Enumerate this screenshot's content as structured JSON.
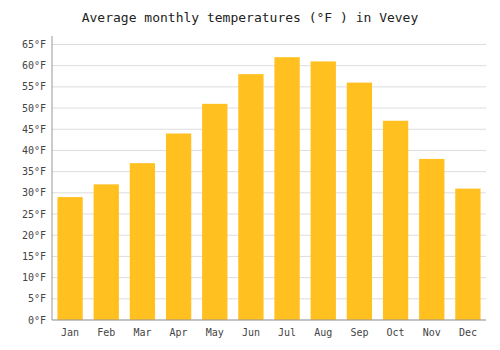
{
  "chart_data": {
    "type": "bar",
    "title": "Average monthly temperatures (°F ) in Vevey",
    "categories": [
      "Jan",
      "Feb",
      "Mar",
      "Apr",
      "May",
      "Jun",
      "Jul",
      "Aug",
      "Sep",
      "Oct",
      "Nov",
      "Dec"
    ],
    "values": [
      29,
      32,
      37,
      44,
      51,
      58,
      62,
      61,
      56,
      47,
      38,
      31
    ],
    "color": "#FFC020",
    "ylim": [
      0,
      67
    ],
    "yticks": [
      {
        "value": 0,
        "label": "0°F"
      },
      {
        "value": 5,
        "label": "5°F"
      },
      {
        "value": 10,
        "label": "10°F"
      },
      {
        "value": 15,
        "label": "15°F"
      },
      {
        "value": 20,
        "label": "20°F"
      },
      {
        "value": 25,
        "label": "25°F"
      },
      {
        "value": 30,
        "label": "30°F"
      },
      {
        "value": 35,
        "label": "35°F"
      },
      {
        "value": 40,
        "label": "40°F"
      },
      {
        "value": 45,
        "label": "45°F"
      },
      {
        "value": 50,
        "label": "50°F"
      },
      {
        "value": 55,
        "label": "55°F"
      },
      {
        "value": 60,
        "label": "60°F"
      },
      {
        "value": 65,
        "label": "65°F"
      }
    ],
    "grid": true
  }
}
